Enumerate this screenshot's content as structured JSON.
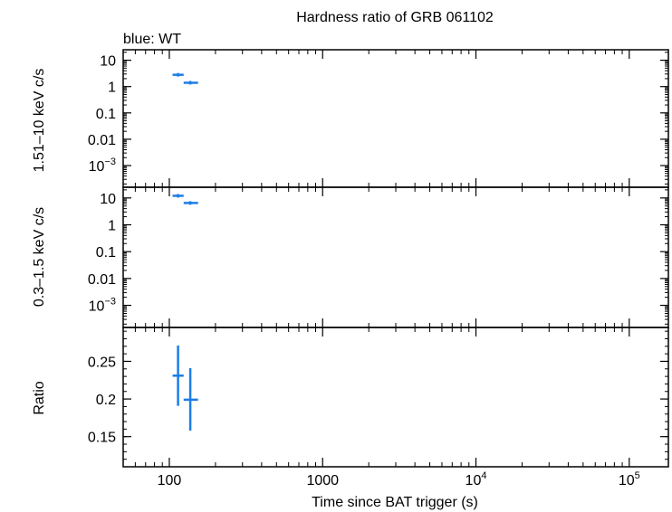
{
  "chart_data": {
    "type": "scatter",
    "title": "Hardness ratio of GRB 061102",
    "subtitle": "blue: WT",
    "xlabel": "Time since BAT trigger (s)",
    "x_scale": "log",
    "xlim": [
      50,
      180000
    ],
    "x_ticks": [
      {
        "value": 100,
        "label": "100"
      },
      {
        "value": 1000,
        "label": "1000"
      },
      {
        "value": 10000,
        "base": "10",
        "exp": "4"
      },
      {
        "value": 100000,
        "base": "10",
        "exp": "5"
      }
    ],
    "series_color": "#1a7ee8",
    "axis_color": "#000000",
    "panels": [
      {
        "ylabel": "1.51–10 keV c/s",
        "y_scale": "log",
        "ylim": [
          0.00015,
          25
        ],
        "y_ticks": [
          {
            "value": 10,
            "label": "10"
          },
          {
            "value": 1,
            "label": "1"
          },
          {
            "value": 0.1,
            "label": "0.1"
          },
          {
            "value": 0.01,
            "label": "0.01"
          },
          {
            "value": 0.001,
            "base": "10",
            "exp": "−3"
          }
        ],
        "points": [
          {
            "x": 114,
            "xerr": [
              105,
              124
            ],
            "y": 2.8
          },
          {
            "x": 137,
            "xerr": [
              124,
              154
            ],
            "y": 1.4
          }
        ]
      },
      {
        "ylabel": "0.3–1.5 keV c/s",
        "y_scale": "log",
        "ylim": [
          0.00015,
          25
        ],
        "y_ticks": [
          {
            "value": 10,
            "label": "10"
          },
          {
            "value": 1,
            "label": "1"
          },
          {
            "value": 0.1,
            "label": "0.1"
          },
          {
            "value": 0.01,
            "label": "0.01"
          },
          {
            "value": 0.001,
            "base": "10",
            "exp": "−3"
          }
        ],
        "points": [
          {
            "x": 114,
            "xerr": [
              105,
              124
            ],
            "y": 12
          },
          {
            "x": 137,
            "xerr": [
              124,
              154
            ],
            "y": 6.5
          }
        ]
      },
      {
        "ylabel": "Ratio",
        "y_scale": "linear",
        "ylim": [
          0.11,
          0.295
        ],
        "y_ticks": [
          {
            "value": 0.25,
            "label": "0.25"
          },
          {
            "value": 0.2,
            "label": "0.2"
          },
          {
            "value": 0.15,
            "label": "0.15"
          }
        ],
        "points": [
          {
            "x": 114,
            "xerr": [
              105,
              124
            ],
            "y": 0.231,
            "yerr": [
              0.191,
              0.271
            ]
          },
          {
            "x": 137,
            "xerr": [
              124,
              154
            ],
            "y": 0.199,
            "yerr": [
              0.158,
              0.241
            ]
          }
        ]
      }
    ]
  }
}
